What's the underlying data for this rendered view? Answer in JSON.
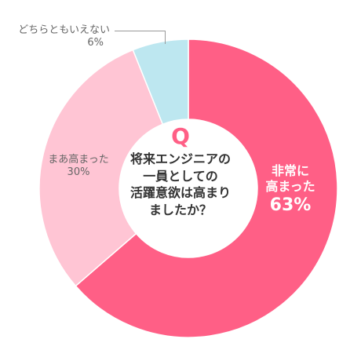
{
  "chart_data": {
    "type": "pie",
    "donut": true,
    "question_mark": "Q",
    "question_lines": [
      "将来エンジニアの",
      "一員としての",
      "活躍意欲は高まり",
      "ましたか？"
    ],
    "slices": [
      {
        "label_lines": [
          "非常に",
          "高まった"
        ],
        "value": 63,
        "value_label": "63%",
        "color": "#ff5f86"
      },
      {
        "label_lines": [
          "まあ高まった"
        ],
        "value": 30,
        "value_label": "30%",
        "color": "#ffc5d4"
      },
      {
        "label_lines": [
          "どちらともいえない"
        ],
        "value": 6,
        "value_label": "6%",
        "color": "#bde7f0"
      }
    ]
  }
}
